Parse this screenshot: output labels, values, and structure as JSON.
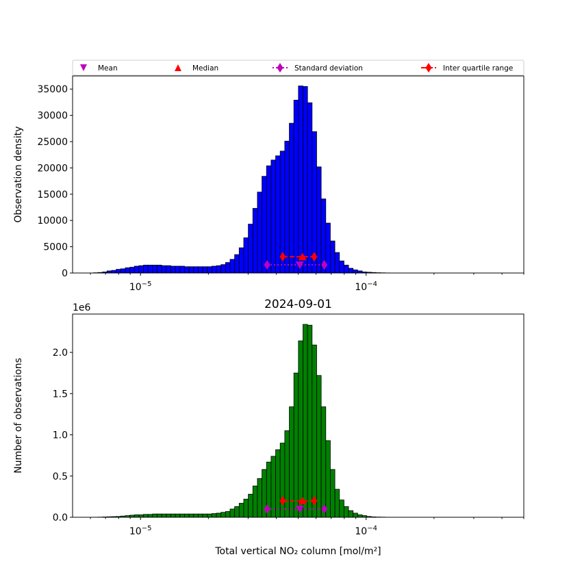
{
  "chart_data": [
    {
      "type": "bar",
      "title": "",
      "xlabel": "",
      "ylabel": "Observation density",
      "xscale": "log",
      "xlim": [
        5e-06,
        0.0005
      ],
      "ylim": [
        0,
        37500
      ],
      "yticks": [
        0,
        5000,
        10000,
        15000,
        20000,
        25000,
        30000,
        35000
      ],
      "ytick_labels": [
        "0",
        "5000",
        "10000",
        "15000",
        "20000",
        "25000",
        "30000",
        "35000"
      ],
      "xtick_labels": [
        {
          "base": "10",
          "exp": "−5"
        },
        {
          "base": "10",
          "exp": "−4"
        }
      ],
      "bin_log10_start": -5.209,
      "bin_log10_width": 0.0202,
      "bar_color": "#0000ff",
      "values": [
        50,
        100,
        200,
        400,
        500,
        700,
        800,
        1000,
        1100,
        1300,
        1400,
        1500,
        1500,
        1500,
        1500,
        1400,
        1400,
        1300,
        1300,
        1300,
        1200,
        1200,
        1200,
        1200,
        1200,
        1200,
        1300,
        1400,
        1600,
        2000,
        2600,
        3500,
        4800,
        6700,
        9300,
        12300,
        15400,
        18400,
        20400,
        21500,
        22300,
        23200,
        25100,
        28500,
        32900,
        35600,
        35500,
        32400,
        26900,
        20200,
        14100,
        9500,
        6100,
        3900,
        2300,
        1500,
        900,
        600,
        400,
        200,
        150,
        100,
        60,
        40,
        20
      ],
      "stats": {
        "mean": 5.08e-05,
        "median": 5.22e-05,
        "std_range": [
          3.64e-05,
          6.53e-05
        ],
        "iqr_range": [
          4.27e-05,
          5.89e-05
        ],
        "iqr_y": 3100,
        "std_y": 1550
      }
    },
    {
      "type": "bar",
      "title": "2024-09-01",
      "xlabel": "Total vertical NO₂ column [mol/m²]",
      "ylabel": "Number of observations",
      "offset_text": "1e6",
      "xscale": "log",
      "xlim": [
        5e-06,
        0.0005
      ],
      "ylim": [
        0,
        2.465
      ],
      "yticks": [
        0,
        0.5,
        1.0,
        1.5,
        2.0
      ],
      "ytick_labels": [
        "0.0",
        "0.5",
        "1.0",
        "1.5",
        "2.0"
      ],
      "xtick_labels": [
        {
          "base": "10",
          "exp": "−5"
        },
        {
          "base": "10",
          "exp": "−4"
        }
      ],
      "bin_log10_start": -5.209,
      "bin_log10_width": 0.0202,
      "bar_color": "#008000",
      "values": [
        0.001,
        0.002,
        0.004,
        0.006,
        0.008,
        0.01,
        0.015,
        0.02,
        0.025,
        0.03,
        0.03,
        0.035,
        0.035,
        0.04,
        0.04,
        0.04,
        0.04,
        0.04,
        0.04,
        0.04,
        0.04,
        0.04,
        0.04,
        0.04,
        0.04,
        0.04,
        0.045,
        0.05,
        0.06,
        0.07,
        0.1,
        0.13,
        0.17,
        0.22,
        0.28,
        0.38,
        0.47,
        0.58,
        0.67,
        0.74,
        0.82,
        0.9,
        1.05,
        1.34,
        1.75,
        2.14,
        2.34,
        2.33,
        2.09,
        1.72,
        1.34,
        0.93,
        0.58,
        0.34,
        0.21,
        0.13,
        0.08,
        0.05,
        0.03,
        0.02,
        0.01,
        0.005,
        0.003,
        0.002,
        0.001
      ],
      "stats": {
        "mean": 5.08e-05,
        "median": 5.22e-05,
        "std_range": [
          3.64e-05,
          6.53e-05
        ],
        "iqr_range": [
          4.27e-05,
          5.89e-05
        ],
        "iqr_y": 0.2,
        "std_y": 0.1
      }
    }
  ],
  "legend": {
    "placement": "top-expanded",
    "entries": [
      {
        "label": "Mean",
        "marker": "triangle-down",
        "color": "#bf00bf"
      },
      {
        "label": "Median",
        "marker": "triangle-up",
        "color": "#ff0000"
      },
      {
        "label": "Standard deviation",
        "marker": "diamond-dotted",
        "color": "#bf00bf"
      },
      {
        "label": "Inter quartile range",
        "marker": "diamond-dashed",
        "color": "#ff0000"
      }
    ]
  }
}
